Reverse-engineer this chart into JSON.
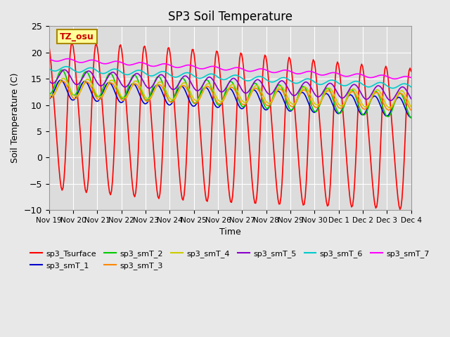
{
  "title": "SP3 Soil Temperature",
  "xlabel": "Time",
  "ylabel": "Soil Temperature (C)",
  "ylim": [
    -10,
    25
  ],
  "annotation": "TZ_osu",
  "x_tick_labels": [
    "Nov 19",
    "Nov 20",
    "Nov 21",
    "Nov 22",
    "Nov 23",
    "Nov 24",
    "Nov 25",
    "Nov 26",
    "Nov 27",
    "Nov 28",
    "Nov 29",
    "Nov 30",
    "Dec 1",
    "Dec 2",
    "Dec 3",
    "Dec 4"
  ],
  "series_colors": {
    "sp3_Tsurface": "#FF0000",
    "sp3_smT_1": "#0000CC",
    "sp3_smT_2": "#00CC00",
    "sp3_smT_3": "#FF8800",
    "sp3_smT_4": "#CCCC00",
    "sp3_smT_5": "#8800CC",
    "sp3_smT_6": "#00CCCC",
    "sp3_smT_7": "#FF00FF"
  },
  "background_color": "#E8E8E8",
  "plot_bg_color": "#DCDCDC"
}
